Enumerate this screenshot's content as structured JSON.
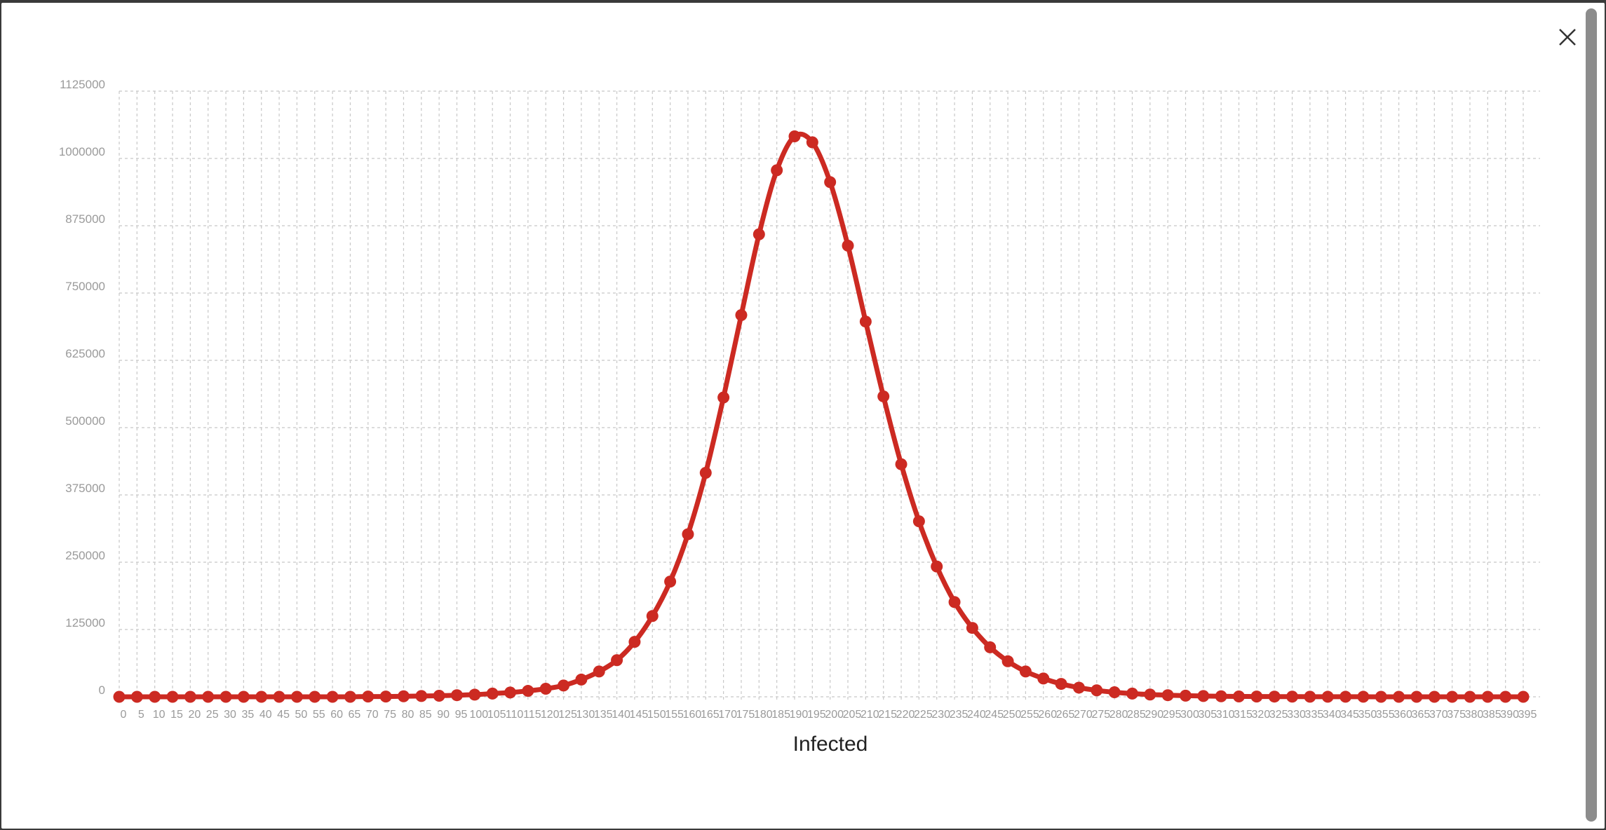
{
  "colors": {
    "series": "#cc2a22",
    "grid": "#c8c8c8",
    "tick": "#9a9a9a"
  },
  "icons": {
    "close": "close-icon"
  },
  "chart_data": {
    "type": "line",
    "xlabel": "Infected",
    "ylabel": "",
    "ylim": [
      0,
      1125000
    ],
    "yticks": [
      0,
      125000,
      250000,
      375000,
      500000,
      625000,
      750000,
      875000,
      1000000,
      1125000
    ],
    "ytick_labels": [
      "0",
      "125000",
      "250000",
      "375000",
      "500000",
      "625000",
      "750000",
      "875000",
      "1000000",
      "1125000"
    ],
    "grid": true,
    "legend": "none",
    "series": [
      {
        "x": [
          0,
          5,
          10,
          15,
          20,
          25,
          30,
          35,
          40,
          45,
          50,
          55,
          60,
          65,
          70,
          75,
          80,
          85,
          90,
          95,
          100,
          105,
          110,
          115,
          120,
          125,
          130,
          135,
          140,
          145,
          150,
          155,
          160,
          165,
          170,
          175,
          180,
          185,
          190,
          195,
          200,
          205,
          210,
          215,
          220,
          225,
          230,
          235,
          240,
          245,
          250,
          255,
          260,
          265,
          270,
          275,
          280,
          285,
          290,
          295,
          300,
          305,
          310,
          315,
          320,
          325,
          330,
          335,
          340,
          345,
          350,
          355,
          360,
          365,
          370,
          375,
          380,
          385,
          390,
          395
        ],
        "y": [
          0,
          0,
          0,
          0,
          0,
          0,
          0,
          0,
          0,
          0,
          0,
          0,
          0,
          0,
          500,
          500,
          1000,
          1500,
          2000,
          3000,
          4000,
          6000,
          8000,
          11000,
          15000,
          21000,
          32000,
          47000,
          68000,
          102000,
          150000,
          214000,
          302000,
          416000,
          556000,
          709000,
          859000,
          978000,
          1041000,
          1030000,
          956000,
          838000,
          697000,
          558000,
          432000,
          326000,
          242000,
          176000,
          128000,
          92000,
          66000,
          47000,
          34000,
          24000,
          17000,
          12000,
          8500,
          6000,
          4200,
          3000,
          2100,
          1500,
          1000,
          700,
          500,
          400,
          300,
          200,
          100,
          100,
          100,
          0,
          0,
          0,
          0,
          0,
          0,
          0,
          0,
          0
        ]
      }
    ]
  }
}
